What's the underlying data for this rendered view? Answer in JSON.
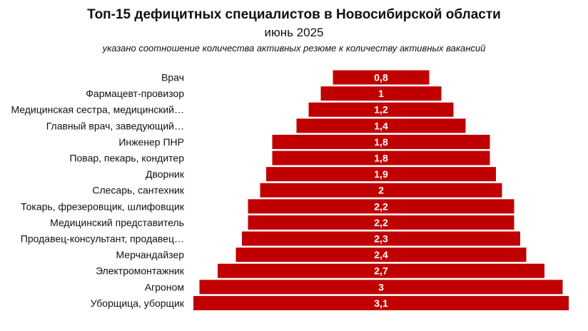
{
  "chart_data": {
    "type": "bar",
    "orientation": "horizontal",
    "layout": "centered",
    "title": "Топ-15 дефицитных специалистов в Новосибирской области",
    "subtitle": "июнь 2025",
    "note": "указано соотношение количества активных резюме к количеству активных вакансий",
    "categories": [
      "Врач",
      "Фармацевт-провизор",
      "Медицинская сестра, медицинский…",
      "Главный врач, заведующий…",
      "Инженер ПНР",
      "Повар, пекарь, кондитер",
      "Дворник",
      "Слесарь, сантехник",
      "Токарь, фрезеровщик, шлифовщик",
      "Медицинский представитель",
      "Продавец-консультант, продавец…",
      "Мерчандайзер",
      "Электромонтажник",
      "Агроном",
      "Уборщица, уборщик"
    ],
    "values": [
      0.8,
      1,
      1.2,
      1.4,
      1.8,
      1.8,
      1.9,
      2,
      2.2,
      2.2,
      2.3,
      2.4,
      2.7,
      3,
      3.1
    ],
    "value_labels": [
      "0,8",
      "1",
      "1,2",
      "1,4",
      "1,8",
      "1,8",
      "1,9",
      "2",
      "2,2",
      "2,2",
      "2,3",
      "2,4",
      "2,7",
      "3",
      "3,1"
    ],
    "bar_color": "#c00000",
    "bar_edge_color": "#ffffff",
    "label_color": "#ffffff",
    "grid": false,
    "legend": "none"
  }
}
